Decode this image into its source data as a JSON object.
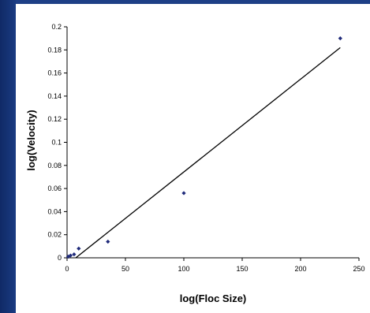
{
  "chart_data": {
    "type": "scatter",
    "title": "",
    "xlabel": "log(Floc Size)",
    "ylabel": "log(Velocity)",
    "xlim": [
      0,
      250
    ],
    "ylim": [
      0,
      0.2
    ],
    "xticks": [
      "0",
      "50",
      "100",
      "150",
      "200",
      "250"
    ],
    "yticks": [
      "0",
      "0.02",
      "0.04",
      "0.06",
      "0.08",
      "0.1",
      "0.12",
      "0.14",
      "0.16",
      "0.18",
      "0.2"
    ],
    "grid": false,
    "legend": "none",
    "series": [
      {
        "x": [
          1,
          3,
          6,
          10,
          35,
          100,
          234
        ],
        "y": [
          0.001,
          0.002,
          0.003,
          0.008,
          0.014,
          0.056,
          0.19
        ]
      }
    ],
    "trendline": {
      "x": [
        7.5,
        234
      ],
      "y": [
        0,
        0.182
      ]
    },
    "marker_color": "#1f2a7a",
    "background_color": "#1e3f86"
  }
}
